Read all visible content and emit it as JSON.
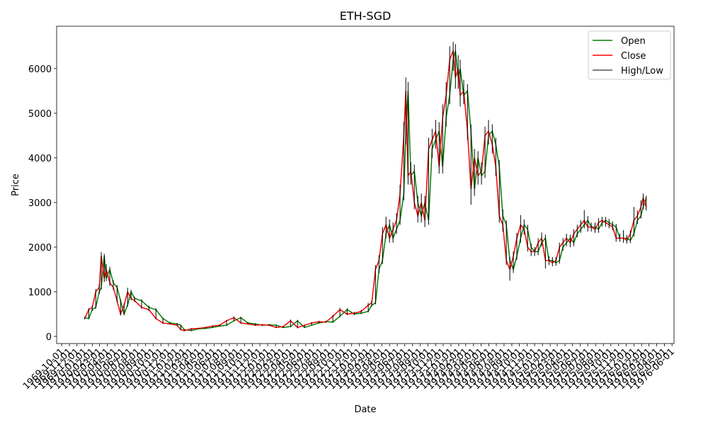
{
  "chart_data": {
    "type": "ohlc",
    "title": "ETH-SGD",
    "x_label": "Date",
    "y_label": "Price",
    "legend": "upper right",
    "xlim": [
      -112,
      2351
    ],
    "ylim": [
      -160,
      6950
    ],
    "yticks": [
      0,
      1000,
      2000,
      3000,
      4000,
      5000,
      6000
    ],
    "xticks": [
      {
        "value": -92,
        "label": "1969-10-01"
      },
      {
        "value": -61,
        "label": "1969-11-01"
      },
      {
        "value": -31,
        "label": "1969-12-01"
      },
      {
        "value": 0,
        "label": "1970-01-01"
      },
      {
        "value": 31,
        "label": "1970-02-01"
      },
      {
        "value": 59,
        "label": "1970-03-01"
      },
      {
        "value": 90,
        "label": "1970-04-01"
      },
      {
        "value": 120,
        "label": "1970-05-01"
      },
      {
        "value": 151,
        "label": "1970-06-01"
      },
      {
        "value": 181,
        "label": "1970-07-01"
      },
      {
        "value": 212,
        "label": "1970-08-01"
      },
      {
        "value": 243,
        "label": "1970-09-01"
      },
      {
        "value": 273,
        "label": "1970-10-01"
      },
      {
        "value": 304,
        "label": "1970-11-01"
      },
      {
        "value": 334,
        "label": "1970-12-01"
      },
      {
        "value": 365,
        "label": "1971-01-01"
      },
      {
        "value": 396,
        "label": "1971-02-01"
      },
      {
        "value": 424,
        "label": "1971-03-01"
      },
      {
        "value": 455,
        "label": "1971-04-01"
      },
      {
        "value": 485,
        "label": "1971-05-01"
      },
      {
        "value": 516,
        "label": "1971-06-01"
      },
      {
        "value": 546,
        "label": "1971-07-01"
      },
      {
        "value": 577,
        "label": "1971-08-01"
      },
      {
        "value": 608,
        "label": "1971-09-01"
      },
      {
        "value": 638,
        "label": "1971-10-01"
      },
      {
        "value": 669,
        "label": "1971-11-01"
      },
      {
        "value": 699,
        "label": "1971-12-01"
      },
      {
        "value": 730,
        "label": "1972-01-01"
      },
      {
        "value": 761,
        "label": "1972-02-01"
      },
      {
        "value": 790,
        "label": "1972-03-01"
      },
      {
        "value": 821,
        "label": "1972-04-01"
      },
      {
        "value": 851,
        "label": "1972-05-01"
      },
      {
        "value": 882,
        "label": "1972-06-01"
      },
      {
        "value": 912,
        "label": "1972-07-01"
      },
      {
        "value": 943,
        "label": "1972-08-01"
      },
      {
        "value": 974,
        "label": "1972-09-01"
      },
      {
        "value": 1004,
        "label": "1972-10-01"
      },
      {
        "value": 1035,
        "label": "1972-11-01"
      },
      {
        "value": 1065,
        "label": "1972-12-01"
      },
      {
        "value": 1096,
        "label": "1973-01-01"
      },
      {
        "value": 1127,
        "label": "1973-02-01"
      },
      {
        "value": 1155,
        "label": "1973-03-01"
      },
      {
        "value": 1186,
        "label": "1973-04-01"
      },
      {
        "value": 1216,
        "label": "1973-05-01"
      },
      {
        "value": 1247,
        "label": "1973-06-01"
      },
      {
        "value": 1277,
        "label": "1973-07-01"
      },
      {
        "value": 1308,
        "label": "1973-08-01"
      },
      {
        "value": 1339,
        "label": "1973-09-01"
      },
      {
        "value": 1369,
        "label": "1973-10-01"
      },
      {
        "value": 1400,
        "label": "1973-11-01"
      },
      {
        "value": 1430,
        "label": "1973-12-01"
      },
      {
        "value": 1461,
        "label": "1974-01-01"
      },
      {
        "value": 1492,
        "label": "1974-02-01"
      },
      {
        "value": 1520,
        "label": "1974-03-01"
      },
      {
        "value": 1551,
        "label": "1974-04-01"
      },
      {
        "value": 1581,
        "label": "1974-05-01"
      },
      {
        "value": 1612,
        "label": "1974-06-01"
      },
      {
        "value": 1642,
        "label": "1974-07-01"
      },
      {
        "value": 1673,
        "label": "1974-08-01"
      },
      {
        "value": 1704,
        "label": "1974-09-01"
      },
      {
        "value": 1734,
        "label": "1974-10-01"
      },
      {
        "value": 1765,
        "label": "1974-11-01"
      },
      {
        "value": 1795,
        "label": "1974-12-01"
      },
      {
        "value": 1826,
        "label": "1975-01-01"
      },
      {
        "value": 1857,
        "label": "1975-02-01"
      },
      {
        "value": 1885,
        "label": "1975-03-01"
      },
      {
        "value": 1916,
        "label": "1975-04-01"
      },
      {
        "value": 1946,
        "label": "1975-05-01"
      },
      {
        "value": 1977,
        "label": "1975-06-01"
      },
      {
        "value": 2007,
        "label": "1975-07-01"
      },
      {
        "value": 2038,
        "label": "1975-08-01"
      },
      {
        "value": 2069,
        "label": "1975-09-01"
      },
      {
        "value": 2099,
        "label": "1975-10-01"
      },
      {
        "value": 2130,
        "label": "1975-11-01"
      },
      {
        "value": 2160,
        "label": "1975-12-01"
      },
      {
        "value": 2191,
        "label": "1976-01-01"
      },
      {
        "value": 2222,
        "label": "1976-02-01"
      },
      {
        "value": 2251,
        "label": "1976-03-01"
      },
      {
        "value": 2282,
        "label": "1976-04-01"
      },
      {
        "value": 2313,
        "label": "1976-05-01"
      },
      {
        "value": 2343,
        "label": "1976-06-01"
      }
    ],
    "x": [
      0,
      16,
      30,
      44,
      58,
      66,
      78,
      86,
      100,
      114,
      129,
      143,
      157,
      171,
      185,
      199,
      227,
      256,
      284,
      312,
      340,
      369,
      383,
      397,
      425,
      454,
      482,
      510,
      538,
      566,
      595,
      623,
      651,
      680,
      708,
      736,
      764,
      792,
      821,
      849,
      877,
      905,
      934,
      962,
      990,
      1018,
      1047,
      1075,
      1103,
      1131,
      1145,
      1160,
      1174,
      1188,
      1202,
      1216,
      1230,
      1244,
      1258,
      1273,
      1281,
      1290,
      1301,
      1315,
      1329,
      1343,
      1357,
      1372,
      1386,
      1400,
      1414,
      1428,
      1442,
      1456,
      1470,
      1479,
      1490,
      1498,
      1512,
      1527,
      1541,
      1555,
      1569,
      1583,
      1597,
      1611,
      1626,
      1640,
      1654,
      1668,
      1682,
      1696,
      1710,
      1724,
      1739,
      1753,
      1767,
      1781,
      1795,
      1809,
      1823,
      1838,
      1852,
      1866,
      1880,
      1894,
      1908,
      1922,
      1937,
      1951,
      1965,
      1979,
      1993,
      2007,
      2021,
      2036,
      2050,
      2064,
      2078,
      2092,
      2106,
      2120,
      2135,
      2149,
      2163,
      2177,
      2191,
      2205,
      2219,
      2228,
      2240
    ],
    "series": [
      {
        "name": "Open",
        "color": "#008000",
        "values": [
          420,
          400,
          600,
          650,
          1000,
          1100,
          1800,
          1300,
          1500,
          1200,
          1100,
          800,
          500,
          700,
          1000,
          850,
          800,
          650,
          600,
          400,
          300,
          280,
          250,
          150,
          130,
          170,
          180,
          200,
          230,
          250,
          350,
          420,
          300,
          280,
          250,
          260,
          250,
          200,
          220,
          350,
          200,
          250,
          300,
          330,
          320,
          450,
          600,
          500,
          520,
          560,
          700,
          750,
          1500,
          1700,
          2300,
          2500,
          2200,
          2400,
          2600,
          3200,
          4500,
          5500,
          3600,
          3700,
          3000,
          2700,
          3000,
          2600,
          4200,
          4400,
          4600,
          3800,
          4900,
          5400,
          6200,
          6400,
          5800,
          6000,
          5400,
          5500,
          4600,
          3300,
          4000,
          3600,
          3700,
          4500,
          4600,
          4300,
          3800,
          2700,
          2500,
          1700,
          1500,
          1800,
          2200,
          2500,
          2400,
          2000,
          1900,
          1900,
          2100,
          2200,
          1700,
          1700,
          1650,
          1700,
          2000,
          2100,
          2200,
          2100,
          2300,
          2400,
          2500,
          2600,
          2450,
          2450,
          2400,
          2550,
          2600,
          2550,
          2500,
          2450,
          2200,
          2200,
          2200,
          2150,
          2300,
          2600,
          2700,
          2900,
          3100
        ]
      },
      {
        "name": "Close",
        "color": "#ff0000",
        "values": [
          400,
          600,
          650,
          1000,
          1100,
          1800,
          1300,
          1500,
          1200,
          1100,
          800,
          500,
          700,
          1000,
          850,
          800,
          650,
          600,
          400,
          300,
          280,
          250,
          150,
          130,
          170,
          180,
          200,
          230,
          250,
          350,
          420,
          300,
          280,
          250,
          260,
          250,
          200,
          220,
          350,
          200,
          250,
          300,
          330,
          320,
          450,
          600,
          500,
          520,
          560,
          700,
          750,
          1500,
          1700,
          2300,
          2500,
          2200,
          2400,
          2600,
          3200,
          4500,
          5500,
          3600,
          3700,
          3000,
          2700,
          3000,
          2600,
          4200,
          4400,
          4600,
          3800,
          4900,
          5400,
          6200,
          6400,
          5800,
          6000,
          5400,
          5500,
          4600,
          3300,
          4000,
          3600,
          3700,
          4500,
          4600,
          4300,
          3800,
          2700,
          2500,
          1700,
          1500,
          1800,
          2200,
          2500,
          2400,
          2000,
          1900,
          1900,
          2100,
          2200,
          1700,
          1700,
          1650,
          1700,
          2000,
          2100,
          2200,
          2100,
          2300,
          2400,
          2500,
          2600,
          2450,
          2450,
          2400,
          2550,
          2600,
          2550,
          2500,
          2450,
          2200,
          2200,
          2200,
          2150,
          2300,
          2600,
          2700,
          2900,
          3100,
          2900
        ]
      },
      {
        "name": "High/Low",
        "color": "#000000",
        "high": [
          440,
          630,
          690,
          1060,
          1170,
          1890,
          1850,
          1620,
          1560,
          1260,
          1150,
          830,
          740,
          1090,
          1040,
          890,
          830,
          690,
          630,
          420,
          320,
          300,
          265,
          165,
          185,
          195,
          215,
          245,
          265,
          370,
          450,
          440,
          315,
          295,
          275,
          275,
          265,
          235,
          380,
          370,
          265,
          320,
          350,
          350,
          480,
          640,
          630,
          550,
          595,
          750,
          800,
          1600,
          1820,
          2450,
          2680,
          2620,
          2550,
          2760,
          3400,
          4800,
          5800,
          5700,
          3900,
          3850,
          3150,
          3200,
          3150,
          4450,
          4650,
          4850,
          4800,
          5200,
          5700,
          6500,
          6600,
          6550,
          6300,
          6200,
          5750,
          5650,
          4750,
          4200,
          4150,
          3900,
          4700,
          4850,
          4750,
          4450,
          3950,
          2850,
          2600,
          1780,
          1900,
          2320,
          2720,
          2620,
          2500,
          2080,
          2000,
          2200,
          2330,
          2280,
          1800,
          1780,
          1780,
          2100,
          2200,
          2300,
          2280,
          2400,
          2500,
          2600,
          2830,
          2700,
          2550,
          2550,
          2650,
          2680,
          2680,
          2630,
          2580,
          2520,
          2300,
          2380,
          2270,
          2380,
          2900,
          2820,
          3050,
          3200,
          3150
        ],
        "low": [
          380,
          390,
          570,
          620,
          950,
          1050,
          1220,
          1240,
          1130,
          1040,
          760,
          470,
          480,
          670,
          810,
          770,
          620,
          570,
          380,
          285,
          265,
          235,
          140,
          115,
          120,
          160,
          170,
          190,
          220,
          240,
          335,
          285,
          265,
          240,
          240,
          240,
          190,
          190,
          210,
          180,
          190,
          240,
          290,
          305,
          305,
          430,
          475,
          480,
          500,
          540,
          670,
          720,
          1420,
          1620,
          2200,
          2100,
          2100,
          2300,
          2500,
          3050,
          4300,
          3400,
          3400,
          2850,
          2550,
          2550,
          2450,
          2500,
          4000,
          4200,
          3650,
          3650,
          4700,
          5200,
          5950,
          5550,
          5550,
          5150,
          5200,
          4400,
          2950,
          3150,
          3400,
          3400,
          3550,
          4300,
          4100,
          3600,
          2550,
          2350,
          1600,
          1250,
          1420,
          1720,
          2100,
          2280,
          1900,
          1800,
          1800,
          1820,
          2020,
          1520,
          1600,
          1570,
          1580,
          1630,
          1920,
          2020,
          2000,
          2020,
          2220,
          2320,
          2420,
          2350,
          2350,
          2320,
          2320,
          2460,
          2460,
          2420,
          2380,
          2120,
          2120,
          2100,
          2080,
          2090,
          2240,
          2520,
          2640,
          2850,
          2820
        ]
      }
    ]
  }
}
